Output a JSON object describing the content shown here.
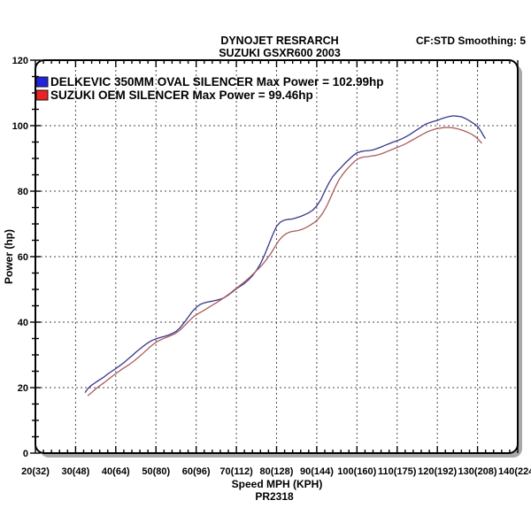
{
  "header": {
    "title_line1": "DYNOJET RESRARCH",
    "title_line2": "SUZUKI GSXR600 2003",
    "smoothing": "CF:STD Smoothing: 5"
  },
  "footer": {
    "xlabel": "Speed MPH (KPH)",
    "run_id": "PR2318"
  },
  "ylabel": "Power (hp)",
  "legend": [
    {
      "label": "DELKEVIC 350MM OVAL SILENCER  Max Power = 102.99hp",
      "color": "#2224dd"
    },
    {
      "label": "SUZUKI OEM SILENCER Max Power = 99.46hp",
      "color": "#ee2222"
    }
  ],
  "chart_data": {
    "type": "line",
    "title": "DYNOJET RESRARCH",
    "subtitle": "SUZUKI GSXR600 2003",
    "xlabel": "Speed MPH (KPH)",
    "ylabel": "Power (hp)",
    "xlim": [
      20,
      140
    ],
    "ylim": [
      0,
      120
    ],
    "grid": "dashed",
    "legend_position": "top-left-inside",
    "x_minor_step": 2,
    "y_minor_step": 5,
    "x_ticks": [
      {
        "mph": 20,
        "label": "20(32)"
      },
      {
        "mph": 30,
        "label": "30(48)"
      },
      {
        "mph": 40,
        "label": "40(64)"
      },
      {
        "mph": 50,
        "label": "50(80)"
      },
      {
        "mph": 60,
        "label": "60(96)"
      },
      {
        "mph": 70,
        "label": "70(112)"
      },
      {
        "mph": 80,
        "label": "80(128)"
      },
      {
        "mph": 90,
        "label": "90(144)"
      },
      {
        "mph": 100,
        "label": "100(160)"
      },
      {
        "mph": 110,
        "label": "110(175)"
      },
      {
        "mph": 120,
        "label": "120(192)"
      },
      {
        "mph": 130,
        "label": "130(208)"
      },
      {
        "mph": 140,
        "label": "140(224)"
      }
    ],
    "y_ticks": [
      0,
      20,
      40,
      60,
      80,
      100,
      120
    ],
    "series": [
      {
        "id": "delkevic",
        "name": "DELKEVIC 350MM OVAL SILENCER",
        "max_power_hp": 102.99,
        "color": "#36368c",
        "points": [
          [
            32.4,
            18.6
          ],
          [
            33.0,
            19.6
          ],
          [
            33.8,
            20.6
          ],
          [
            35,
            21.6
          ],
          [
            36,
            22.4
          ],
          [
            37,
            23.2
          ],
          [
            38,
            24.2
          ],
          [
            39,
            25.0
          ],
          [
            40,
            25.8
          ],
          [
            41,
            26.7
          ],
          [
            42,
            27.6
          ],
          [
            43,
            28.7
          ],
          [
            44,
            29.7
          ],
          [
            45,
            30.8
          ],
          [
            46,
            31.8
          ],
          [
            47,
            32.8
          ],
          [
            48,
            33.7
          ],
          [
            49,
            34.4
          ],
          [
            50,
            34.9
          ],
          [
            51,
            35.3
          ],
          [
            52,
            35.6
          ],
          [
            53,
            36.0
          ],
          [
            54,
            36.5
          ],
          [
            55,
            37.2
          ],
          [
            56,
            38.3
          ],
          [
            57,
            39.8
          ],
          [
            58,
            41.5
          ],
          [
            59,
            43.2
          ],
          [
            60,
            44.5
          ],
          [
            61,
            45.4
          ],
          [
            62,
            45.9
          ],
          [
            63,
            46.2
          ],
          [
            64,
            46.4
          ],
          [
            65,
            46.7
          ],
          [
            66,
            47.0
          ],
          [
            67,
            47.5
          ],
          [
            68,
            48.3
          ],
          [
            69,
            49.2
          ],
          [
            70,
            50.2
          ],
          [
            71,
            51.0
          ],
          [
            72,
            51.8
          ],
          [
            73,
            52.9
          ],
          [
            74,
            54.2
          ],
          [
            75,
            55.8
          ],
          [
            76,
            57.8
          ],
          [
            77,
            60.5
          ],
          [
            78,
            63.5
          ],
          [
            79,
            66.6
          ],
          [
            80,
            69.3
          ],
          [
            81,
            70.6
          ],
          [
            82,
            71.2
          ],
          [
            83,
            71.4
          ],
          [
            84,
            71.5
          ],
          [
            85,
            71.9
          ],
          [
            86,
            72.3
          ],
          [
            87,
            72.8
          ],
          [
            88,
            73.4
          ],
          [
            89,
            74.2
          ],
          [
            90,
            75.5
          ],
          [
            91,
            77.4
          ],
          [
            92,
            80.0
          ],
          [
            93,
            82.4
          ],
          [
            94,
            84.5
          ],
          [
            95,
            85.9
          ],
          [
            96,
            87.2
          ],
          [
            97,
            88.5
          ],
          [
            98,
            89.7
          ],
          [
            99,
            90.8
          ],
          [
            100,
            91.7
          ],
          [
            101,
            92.1
          ],
          [
            102,
            92.3
          ],
          [
            103,
            92.4
          ],
          [
            104,
            92.6
          ],
          [
            105,
            93.0
          ],
          [
            106,
            93.5
          ],
          [
            107,
            94.0
          ],
          [
            108,
            94.5
          ],
          [
            109,
            95.0
          ],
          [
            110,
            95.4
          ],
          [
            111,
            95.9
          ],
          [
            112,
            96.5
          ],
          [
            113,
            97.2
          ],
          [
            114,
            98.0
          ],
          [
            115,
            98.8
          ],
          [
            116,
            99.6
          ],
          [
            117,
            100.4
          ],
          [
            118,
            100.9
          ],
          [
            119,
            101.3
          ],
          [
            120,
            101.6
          ],
          [
            121,
            102.1
          ],
          [
            122,
            102.5
          ],
          [
            123,
            102.8
          ],
          [
            124,
            102.99
          ],
          [
            125,
            102.9
          ],
          [
            126,
            102.7
          ],
          [
            127,
            102.2
          ],
          [
            128,
            101.5
          ],
          [
            129,
            100.7
          ],
          [
            130,
            99.8
          ],
          [
            130.7,
            98.6
          ],
          [
            131.3,
            97.3
          ],
          [
            131.9,
            96.2
          ]
        ]
      },
      {
        "id": "suzuki-oem",
        "name": "SUZUKI OEM SILENCER",
        "max_power_hp": 99.46,
        "color": "#ab5c5c",
        "points": [
          [
            33.1,
            17.6
          ],
          [
            33.8,
            18.3
          ],
          [
            34.6,
            19.2
          ],
          [
            35.5,
            20.1
          ],
          [
            36.5,
            21.0
          ],
          [
            37.5,
            21.9
          ],
          [
            38.5,
            22.9
          ],
          [
            39.5,
            23.8
          ],
          [
            40.5,
            24.7
          ],
          [
            41.5,
            25.6
          ],
          [
            42.5,
            26.4
          ],
          [
            43.5,
            27.2
          ],
          [
            44.5,
            28.1
          ],
          [
            45.5,
            29.1
          ],
          [
            46.5,
            30.2
          ],
          [
            47.5,
            31.3
          ],
          [
            48.5,
            32.4
          ],
          [
            49.5,
            33.4
          ],
          [
            50.5,
            34.2
          ],
          [
            51.5,
            34.8
          ],
          [
            52.5,
            35.3
          ],
          [
            53.5,
            35.8
          ],
          [
            54.5,
            36.3
          ],
          [
            55.5,
            37.1
          ],
          [
            56.5,
            38.2
          ],
          [
            57.5,
            39.4
          ],
          [
            58.5,
            40.7
          ],
          [
            59.5,
            41.8
          ],
          [
            60.5,
            42.6
          ],
          [
            61.5,
            43.3
          ],
          [
            62.5,
            44.0
          ],
          [
            63.5,
            44.8
          ],
          [
            64.5,
            45.5
          ],
          [
            65.5,
            46.3
          ],
          [
            66.5,
            47.1
          ],
          [
            67.5,
            48.0
          ],
          [
            68.5,
            48.9
          ],
          [
            69.5,
            49.9
          ],
          [
            70.5,
            50.8
          ],
          [
            71.5,
            51.8
          ],
          [
            72.5,
            52.8
          ],
          [
            73.5,
            53.9
          ],
          [
            74.5,
            55.1
          ],
          [
            75.5,
            56.3
          ],
          [
            76.5,
            57.6
          ],
          [
            77.5,
            59.1
          ],
          [
            78.5,
            60.8
          ],
          [
            79.5,
            62.8
          ],
          [
            80.5,
            64.8
          ],
          [
            81.5,
            66.2
          ],
          [
            82.5,
            67.1
          ],
          [
            83.5,
            67.6
          ],
          [
            84.5,
            67.8
          ],
          [
            85.5,
            68.0
          ],
          [
            86.5,
            68.4
          ],
          [
            87.5,
            69.0
          ],
          [
            88.5,
            69.7
          ],
          [
            89.5,
            70.5
          ],
          [
            90.5,
            71.7
          ],
          [
            91.5,
            73.3
          ],
          [
            92.5,
            75.5
          ],
          [
            93.5,
            78.2
          ],
          [
            94.5,
            81.0
          ],
          [
            95.5,
            83.4
          ],
          [
            96.5,
            85.2
          ],
          [
            97.5,
            86.7
          ],
          [
            98.5,
            88.0
          ],
          [
            99.5,
            89.2
          ],
          [
            100.5,
            90.0
          ],
          [
            101.5,
            90.4
          ],
          [
            102.5,
            90.5
          ],
          [
            103.5,
            90.7
          ],
          [
            104.5,
            90.9
          ],
          [
            105.5,
            91.2
          ],
          [
            106.5,
            91.6
          ],
          [
            107.5,
            92.1
          ],
          [
            108.5,
            92.6
          ],
          [
            109.5,
            93.1
          ],
          [
            110.5,
            93.6
          ],
          [
            111.5,
            94.1
          ],
          [
            112.5,
            94.7
          ],
          [
            113.5,
            95.4
          ],
          [
            114.5,
            96.1
          ],
          [
            115.5,
            96.8
          ],
          [
            116.5,
            97.5
          ],
          [
            117.5,
            98.1
          ],
          [
            118.5,
            98.6
          ],
          [
            119.5,
            99.0
          ],
          [
            120.5,
            99.2
          ],
          [
            121.5,
            99.4
          ],
          [
            122.5,
            99.46
          ],
          [
            123.5,
            99.4
          ],
          [
            124.5,
            99.2
          ],
          [
            125.5,
            98.9
          ],
          [
            126.5,
            98.5
          ],
          [
            127.5,
            98.0
          ],
          [
            128.5,
            97.4
          ],
          [
            129.5,
            96.6
          ],
          [
            130.3,
            95.7
          ],
          [
            131.0,
            94.7
          ]
        ]
      }
    ]
  }
}
